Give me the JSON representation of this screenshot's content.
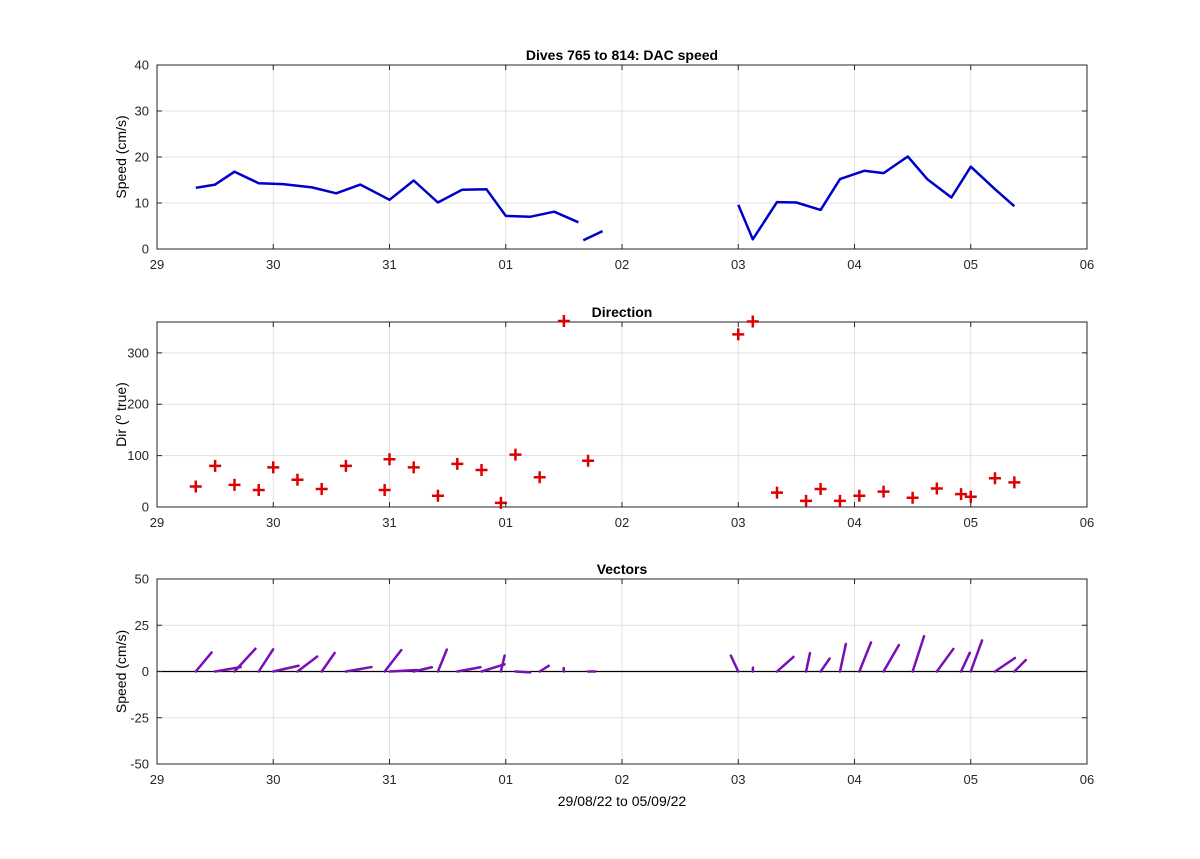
{
  "colors": {
    "speed_line": "#0000cc",
    "direction_marker": "#dd0000",
    "vector_line": "#7a0fb5",
    "grid": "#e0e0e0",
    "axis": "#262626"
  },
  "x_axis_dates": {
    "ticks": [
      "29",
      "30",
      "31",
      "01",
      "02",
      "03",
      "04",
      "05",
      "06"
    ],
    "tick_dates": [
      "2022-08-29",
      "2022-08-30",
      "2022-08-31",
      "2022-09-01",
      "2022-09-02",
      "2022-09-03",
      "2022-09-04",
      "2022-09-05",
      "2022-09-06"
    ],
    "range": [
      "2022-08-29",
      "2022-09-06"
    ],
    "xlabel": "29/08/22 to 05/09/22"
  },
  "chart_data": [
    {
      "type": "line",
      "title": "Dives 765 to 814: DAC speed",
      "ylabel": "Speed (cm/s)",
      "ylim": [
        0,
        40
      ],
      "yticks": [
        "0",
        "10",
        "20",
        "30",
        "40"
      ],
      "grid": true,
      "segments": [
        {
          "x": [
            "2022-08-29 08:00",
            "2022-08-29 12:00",
            "2022-08-29 16:00",
            "2022-08-29 21:00",
            "2022-08-30 02:00",
            "2022-08-30 08:00",
            "2022-08-30 13:00",
            "2022-08-30 18:00",
            "2022-08-31 00:00",
            "2022-08-31 05:00",
            "2022-08-31 10:00",
            "2022-08-31 15:00",
            "2022-08-31 20:00",
            "2022-09-01 00:00",
            "2022-09-01 05:00",
            "2022-09-01 10:00",
            "2022-09-01 15:00"
          ],
          "y": [
            13.3,
            14.0,
            16.8,
            14.3,
            14.1,
            13.4,
            12.1,
            14.0,
            10.7,
            14.9,
            10.1,
            12.9,
            13.0,
            7.2,
            7.0,
            8.1,
            5.8
          ]
        },
        {
          "x": [
            "2022-09-01 16:00",
            "2022-09-01 20:00"
          ],
          "y": [
            1.9,
            3.9
          ]
        },
        {
          "x": [
            "2022-09-03 00:00",
            "2022-09-03 03:00",
            "2022-09-03 08:00",
            "2022-09-03 12:00",
            "2022-09-03 17:00",
            "2022-09-03 21:00",
            "2022-09-04 02:00",
            "2022-09-04 06:00",
            "2022-09-04 11:00",
            "2022-09-04 15:00",
            "2022-09-04 20:00",
            "2022-09-05 00:00",
            "2022-09-05 05:00",
            "2022-09-05 09:00"
          ],
          "y": [
            9.6,
            2.1,
            10.2,
            10.1,
            8.5,
            15.2,
            17.0,
            16.5,
            20.1,
            15.2,
            11.2,
            17.9,
            13.0,
            9.3
          ]
        }
      ]
    },
    {
      "type": "scatter",
      "title": "Direction",
      "ylabel_prefix": "Dir (",
      "ylabel_sup": "o",
      "ylabel_suffix": " true)",
      "ylim": [
        0,
        360
      ],
      "yticks": [
        "0",
        "100",
        "200",
        "300"
      ],
      "grid": true,
      "marker": "+",
      "x": [
        "2022-08-29 08:00",
        "2022-08-29 12:00",
        "2022-08-29 16:00",
        "2022-08-29 21:00",
        "2022-08-30 00:00",
        "2022-08-30 05:00",
        "2022-08-30 10:00",
        "2022-08-30 15:00",
        "2022-08-30 23:00",
        "2022-08-31 00:00",
        "2022-08-31 05:00",
        "2022-08-31 10:00",
        "2022-08-31 14:00",
        "2022-08-31 19:00",
        "2022-08-31 23:00",
        "2022-09-01 02:00",
        "2022-09-01 07:00",
        "2022-09-01 12:00",
        "2022-09-01 17:00",
        "2022-09-03 00:00",
        "2022-09-03 03:00",
        "2022-09-03 08:00",
        "2022-09-03 14:00",
        "2022-09-03 17:00",
        "2022-09-03 21:00",
        "2022-09-04 01:00",
        "2022-09-04 06:00",
        "2022-09-04 12:00",
        "2022-09-04 17:00",
        "2022-09-04 22:00",
        "2022-09-05 00:00",
        "2022-09-05 05:00",
        "2022-09-05 09:00"
      ],
      "y": [
        40,
        80,
        43,
        33,
        77,
        53,
        35,
        80,
        33,
        93,
        77,
        22,
        84,
        72,
        8,
        102,
        58,
        362,
        90,
        336,
        361,
        28,
        12,
        35,
        12,
        22,
        30,
        18,
        36,
        25,
        20,
        56,
        48
      ]
    },
    {
      "type": "vector",
      "title": "Vectors",
      "ylabel": "Speed (cm/s)",
      "ylim": [
        -50,
        50
      ],
      "yticks": [
        "-50",
        "-25",
        "0",
        "25",
        "50"
      ],
      "grid": true,
      "zero_line": true,
      "base_x": [
        "2022-08-29 08:00",
        "2022-08-29 12:00",
        "2022-08-29 16:00",
        "2022-08-29 21:00",
        "2022-08-30 00:00",
        "2022-08-30 05:00",
        "2022-08-30 10:00",
        "2022-08-30 15:00",
        "2022-08-30 23:00",
        "2022-08-31 00:00",
        "2022-08-31 05:00",
        "2022-08-31 10:00",
        "2022-08-31 14:00",
        "2022-08-31 19:00",
        "2022-08-31 23:00",
        "2022-09-01 02:00",
        "2022-09-01 07:00",
        "2022-09-01 12:00",
        "2022-09-01 17:00",
        "2022-09-03 00:00",
        "2022-09-03 03:00",
        "2022-09-03 08:00",
        "2022-09-03 14:00",
        "2022-09-03 17:00",
        "2022-09-03 21:00",
        "2022-09-04 01:00",
        "2022-09-04 06:00",
        "2022-09-04 12:00",
        "2022-09-04 17:00",
        "2022-09-04 22:00",
        "2022-09-05 00:00",
        "2022-09-05 05:00",
        "2022-09-05 09:00"
      ],
      "u": [
        8.6,
        13.8,
        11.3,
        7.8,
        13.7,
        10.7,
        7.0,
        13.8,
        9.0,
        14.9,
        9.8,
        4.8,
        12.5,
        12.4,
        2.0,
        8.0,
        4.9,
        -0.1,
        3.9,
        -4.0,
        0.1,
        8.9,
        2.1,
        4.9,
        3.2,
        6.3,
        8.3,
        6.2,
        8.9,
        4.7,
        6.1,
        10.8,
        6.2
      ],
      "v": [
        10.3,
        2.4,
        12.3,
        12.0,
        3.1,
        8.1,
        10.0,
        2.4,
        11.6,
        0.8,
        2.3,
        11.9,
        2.3,
        3.9,
        8.6,
        -0.5,
        3.1,
        1.9,
        0.0,
        8.6,
        2.1,
        7.9,
        9.9,
        7.0,
        14.9,
        15.7,
        14.3,
        19.1,
        12.2,
        10.1,
        16.8,
        7.3,
        6.2
      ]
    }
  ]
}
